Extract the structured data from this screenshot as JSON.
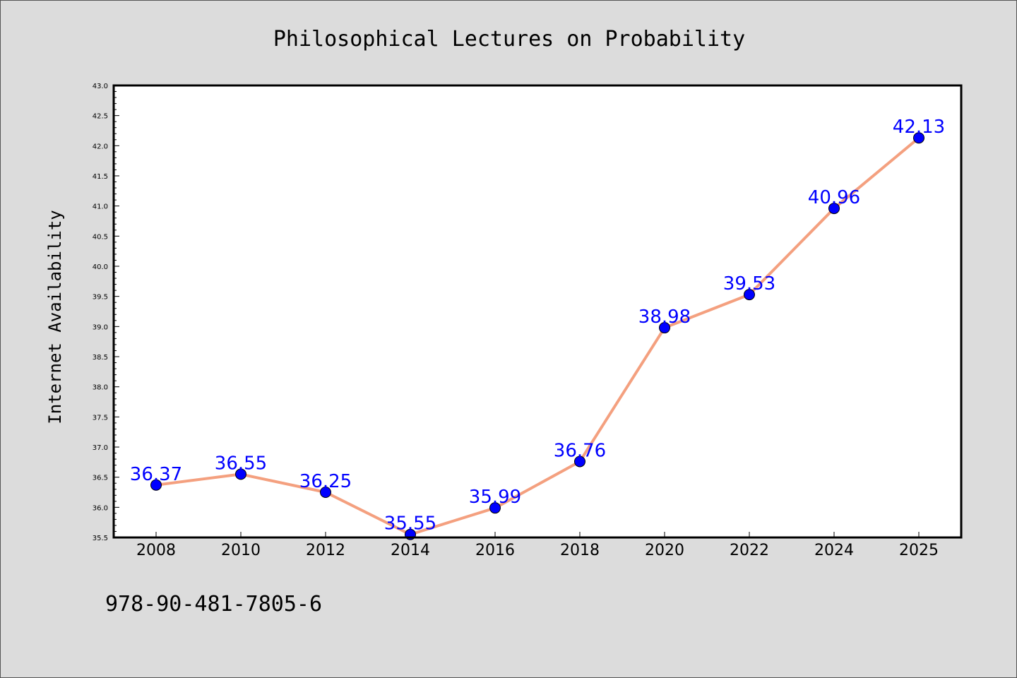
{
  "chart_data": {
    "type": "line",
    "title": "Philosophical Lectures on Probability",
    "xlabel": "",
    "ylabel": "Internet Availability",
    "categories": [
      "2008",
      "2010",
      "2012",
      "2014",
      "2016",
      "2018",
      "2020",
      "2022",
      "2024",
      "2025"
    ],
    "values": [
      36.37,
      36.55,
      36.25,
      35.55,
      35.99,
      36.76,
      38.98,
      39.53,
      40.96,
      42.13
    ],
    "data_labels": [
      "36.37",
      "36.55",
      "36.25",
      "35.55",
      "35.99",
      "36.76",
      "38.98",
      "39.53",
      "40.96",
      "42.13"
    ],
    "ylim": [
      35.5,
      43.0
    ],
    "yticks": [
      "35.5",
      "36.0",
      "36.5",
      "37.0",
      "37.5",
      "38.0",
      "38.5",
      "39.0",
      "39.5",
      "40.0",
      "40.5",
      "41.0",
      "41.5",
      "42.0",
      "42.5",
      "43.0"
    ],
    "grid": false,
    "colors": {
      "line": "#f4a07f",
      "marker": "#0000ff",
      "label": "#0000ff",
      "background": "#dcdcdc",
      "plot_background": "#ffffff"
    }
  },
  "footer_text": "978-90-481-7805-6"
}
